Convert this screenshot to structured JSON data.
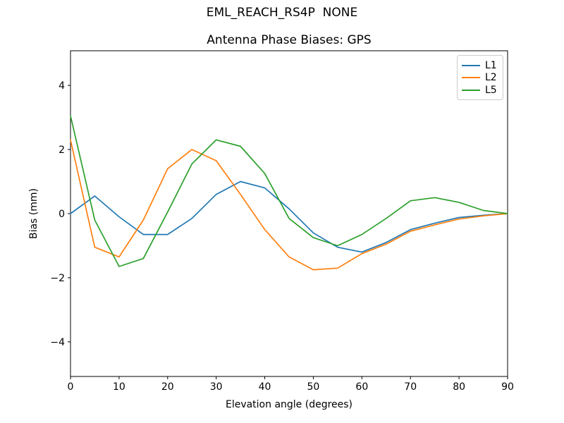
{
  "figure": {
    "suptitle": "EML_REACH_RS4P  NONE"
  },
  "chart_data": {
    "type": "line",
    "title": "Antenna Phase Biases: GPS",
    "xlabel": "Elevation angle (degrees)",
    "ylabel": "Bias (mm)",
    "xlim": [
      0,
      90
    ],
    "ylim": [
      -5.08,
      5.08
    ],
    "xticks": [
      0,
      10,
      20,
      30,
      40,
      50,
      60,
      70,
      80,
      90
    ],
    "yticks": [
      -4,
      -2,
      0,
      2,
      4
    ],
    "grid": false,
    "legend_position": "upper right",
    "x": [
      0,
      5,
      10,
      15,
      20,
      25,
      30,
      35,
      40,
      45,
      50,
      55,
      60,
      65,
      70,
      75,
      80,
      85,
      90
    ],
    "series": [
      {
        "name": "L1",
        "color": "#1f77b4",
        "values": [
          0.0,
          0.55,
          -0.1,
          -0.65,
          -0.65,
          -0.15,
          0.6,
          1.0,
          0.8,
          0.15,
          -0.6,
          -1.05,
          -1.2,
          -0.9,
          -0.5,
          -0.3,
          -0.12,
          -0.05,
          0.0
        ]
      },
      {
        "name": "L2",
        "color": "#ff7f0e",
        "values": [
          2.3,
          -1.05,
          -1.35,
          -0.2,
          1.4,
          2.0,
          1.65,
          0.6,
          -0.5,
          -1.35,
          -1.75,
          -1.7,
          -1.25,
          -0.95,
          -0.55,
          -0.35,
          -0.17,
          -0.07,
          0.0
        ]
      },
      {
        "name": "L5",
        "color": "#2ca02c",
        "values": [
          3.05,
          -0.2,
          -1.65,
          -1.4,
          0.05,
          1.55,
          2.3,
          2.1,
          1.25,
          -0.15,
          -0.75,
          -1.0,
          -0.65,
          -0.15,
          0.4,
          0.5,
          0.35,
          0.1,
          0.0
        ]
      }
    ]
  }
}
